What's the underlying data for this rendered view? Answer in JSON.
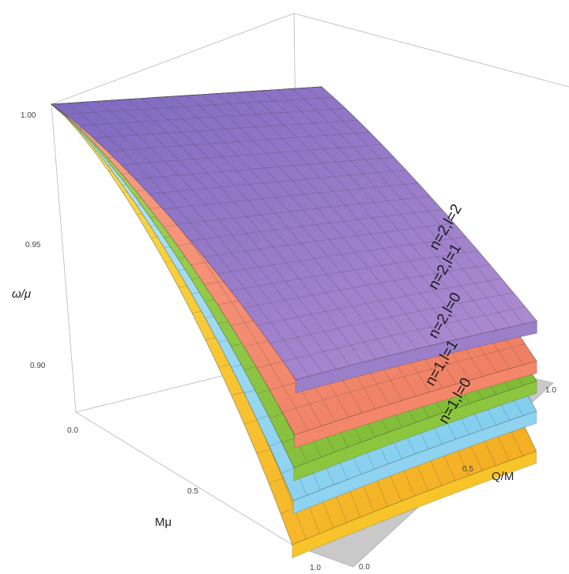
{
  "chart_data": {
    "type": "surface3d",
    "title": "",
    "xlabel": "Q/M",
    "ylabel": "Mμ",
    "zlabel": "ω/μ",
    "xlim": [
      0.0,
      1.0
    ],
    "ylim": [
      0.0,
      1.0
    ],
    "zlim": [
      0.86,
      1.0
    ],
    "x_ticks": [
      "0.0",
      "0.5",
      "1.0"
    ],
    "y_ticks": [
      "0.0",
      "0.5",
      "1.0"
    ],
    "z_ticks": [
      "0.90",
      "0.95",
      "1.00"
    ],
    "series": [
      {
        "name": "n=1,l=0",
        "color": "#f7c52a",
        "corner_values": {
          "q0_m0": 1.0,
          "q1_m0": 1.0,
          "q0_m1": 0.86,
          "q1_m1": 0.9
        }
      },
      {
        "name": "n=1,l=1",
        "color": "#8fd3f0",
        "corner_values": {
          "q0_m0": 1.0,
          "q1_m0": 1.0,
          "q0_m1": 0.88,
          "q1_m1": 0.92
        }
      },
      {
        "name": "n=2,l=0",
        "color": "#8cc63f",
        "corner_values": {
          "q0_m0": 1.0,
          "q1_m0": 1.0,
          "q0_m1": 0.895,
          "q1_m1": 0.935
        }
      },
      {
        "name": "n=2,l=1",
        "color": "#f4876a",
        "corner_values": {
          "q0_m0": 1.0,
          "q1_m0": 1.0,
          "q0_m1": 0.91,
          "q1_m1": 0.945
        }
      },
      {
        "name": "n=2,l=2",
        "color": "#9b7fc8",
        "corner_values": {
          "q0_m0": 1.0,
          "q1_m0": 1.0,
          "q0_m1": 0.935,
          "q1_m1": 0.965
        }
      }
    ]
  }
}
